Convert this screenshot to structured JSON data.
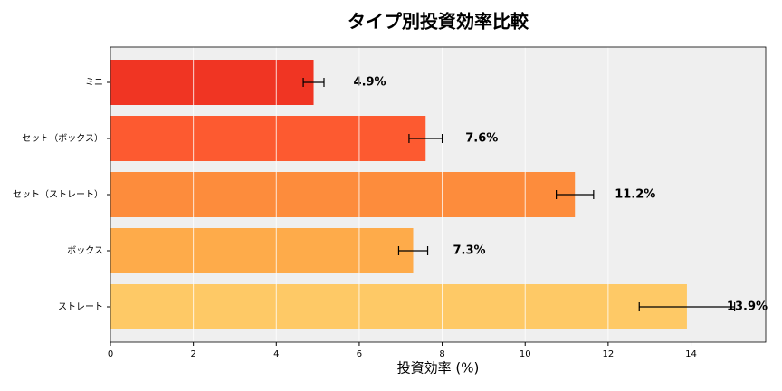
{
  "chart_data": {
    "type": "barh",
    "title": "タイプ別投資効率比較",
    "xlabel": "投資効率 (%)",
    "categories": [
      "ミニ",
      "セット（ボックス）",
      "セット（ストレート）",
      "ボックス",
      "ストレート"
    ],
    "values": [
      4.9,
      7.6,
      11.2,
      7.3,
      13.9
    ],
    "value_labels": [
      "4.9%",
      "7.6%",
      "11.2%",
      "7.3%",
      "13.9%"
    ],
    "errors": [
      0.25,
      0.4,
      0.45,
      0.35,
      1.15
    ],
    "colors": [
      "#f03523",
      "#fd5a30",
      "#fd8c3c",
      "#feab4a",
      "#fec966"
    ],
    "xlim": [
      0,
      15.8
    ],
    "xticks": [
      0,
      2,
      4,
      6,
      8,
      10,
      12,
      14
    ],
    "grid": true
  }
}
